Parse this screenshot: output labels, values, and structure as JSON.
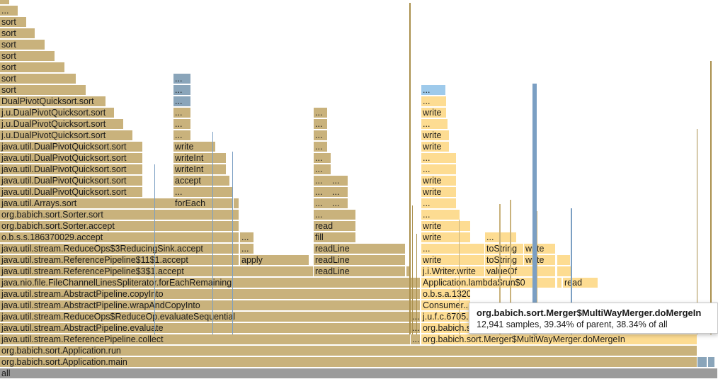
{
  "flamegraph": {
    "rows": [
      {
        "frames": [
          {
            "label": "all",
            "color": "gray"
          }
        ]
      },
      {
        "frames": [
          {
            "label": "org.babich.sort.Application.main",
            "color": "tan"
          },
          {
            "label": "",
            "color": "steel"
          },
          {
            "label": "",
            "color": "steel"
          }
        ]
      },
      {
        "frames": [
          {
            "label": "org.babich.sort.Application.run",
            "color": "tan"
          }
        ]
      },
      {
        "frames": [
          {
            "label": "java.util.stream.ReferencePipeline.collect",
            "color": "tan"
          },
          {
            "label": "...",
            "color": "tan"
          },
          {
            "label": "org.babich.sort.Merger$MultiWayMerger.doMergeIn",
            "color": "yellow"
          }
        ]
      },
      {
        "frames": [
          {
            "label": "java.util.stream.AbstractPipeline.evaluate",
            "color": "tan"
          },
          {
            "label": "...",
            "color": "tan"
          },
          {
            "label": "org.babich.sort.Merger$MultiWayMerger.merge",
            "color": "yellow"
          }
        ]
      },
      {
        "frames": [
          {
            "label": "java.util.stream.ReduceOps$ReduceOp.evaluateSequential",
            "color": "tan"
          },
          {
            "label": "...",
            "color": "tan"
          },
          {
            "label": "j.u.f.c.6705...",
            "color": "yellow"
          }
        ]
      },
      {
        "frames": [
          {
            "label": "java.util.stream.AbstractPipeline.wrapAndCopyInto",
            "color": "tan"
          },
          {
            "label": "",
            "color": "tan"
          },
          {
            "label": "Consumer...",
            "color": "yellow"
          }
        ]
      },
      {
        "frames": [
          {
            "label": "java.util.stream.AbstractPipeline.copyInto",
            "color": "tan"
          },
          {
            "label": "",
            "color": "tan"
          },
          {
            "label": "o.b.s.a.1320...",
            "color": "yellow"
          }
        ]
      },
      {
        "frames": [
          {
            "label": "java.nio.file.FileChannelLinesSpliterator.forEachRemaining",
            "color": "tan"
          },
          {
            "label": "",
            "color": "tan"
          },
          {
            "label": "Application.lambda$run$0",
            "color": "yellow"
          },
          {
            "label": "",
            "color": "yellow"
          },
          {
            "label": "read",
            "color": "yellow"
          }
        ]
      },
      {
        "frames": [
          {
            "label": "java.util.stream.ReferencePipeline$3$1.accept",
            "color": "tan"
          },
          {
            "label": "readLine",
            "color": "tan"
          },
          {
            "label": "",
            "color": "tan"
          },
          {
            "label": "j.i.Writer.write",
            "color": "yellow"
          },
          {
            "label": "valueOf",
            "color": "yellow"
          },
          {
            "label": "",
            "color": "yellow"
          }
        ]
      },
      {
        "frames": [
          {
            "label": "java.util.stream.ReferencePipeline$11$1.accept",
            "color": "tan"
          },
          {
            "label": "apply",
            "color": "tan"
          },
          {
            "label": "readLine",
            "color": "tan"
          },
          {
            "label": "write",
            "color": "yellow"
          },
          {
            "label": "toString",
            "color": "yellow"
          },
          {
            "label": "write",
            "color": "yellow"
          },
          {
            "label": "",
            "color": "yellow"
          }
        ]
      },
      {
        "frames": [
          {
            "label": "java.util.stream.ReduceOps$3ReducingSink.accept",
            "color": "tan"
          },
          {
            "label": "...",
            "color": "tan"
          },
          {
            "label": "readLine",
            "color": "tan"
          },
          {
            "label": "...",
            "color": "yellow"
          },
          {
            "label": "toString",
            "color": "yellow"
          },
          {
            "label": "write",
            "color": "yellow"
          }
        ]
      },
      {
        "frames": [
          {
            "label": "o.b.s.s.186370029.accept",
            "color": "tan"
          },
          {
            "label": "...",
            "color": "tan"
          },
          {
            "label": "fill",
            "color": "tan"
          },
          {
            "label": "write",
            "color": "yellow"
          },
          {
            "label": "...",
            "color": "yellow"
          }
        ]
      },
      {
        "frames": [
          {
            "label": "org.babich.sort.Sorter.accept",
            "color": "tan"
          },
          {
            "label": "read",
            "color": "tan"
          },
          {
            "label": "write",
            "color": "yellow"
          }
        ]
      },
      {
        "frames": [
          {
            "label": "org.babich.sort.Sorter.sort",
            "color": "tan"
          },
          {
            "label": "...",
            "color": "tan"
          },
          {
            "label": "...",
            "color": "yellow"
          }
        ]
      },
      {
        "frames": [
          {
            "label": "java.util.Arrays.sort",
            "color": "tan"
          },
          {
            "label": "forEach",
            "color": "tan"
          },
          {
            "label": "...",
            "color": "tan"
          },
          {
            "label": "...",
            "color": "tan"
          },
          {
            "label": "...",
            "color": "yellow"
          }
        ]
      },
      {
        "frames": [
          {
            "label": "java.util.DualPivotQuicksort.sort",
            "color": "tan"
          },
          {
            "label": "...",
            "color": "tan"
          },
          {
            "label": "...",
            "color": "tan"
          },
          {
            "label": "...",
            "color": "tan"
          },
          {
            "label": "write",
            "color": "yellow"
          }
        ]
      },
      {
        "frames": [
          {
            "label": "java.util.DualPivotQuicksort.sort",
            "color": "tan"
          },
          {
            "label": "accept",
            "color": "tan"
          },
          {
            "label": "...",
            "color": "tan"
          },
          {
            "label": "...",
            "color": "tan"
          },
          {
            "label": "write",
            "color": "yellow"
          }
        ]
      },
      {
        "frames": [
          {
            "label": "java.util.DualPivotQuicksort.sort",
            "color": "tan"
          },
          {
            "label": "writeInt",
            "color": "tan"
          },
          {
            "label": "...",
            "color": "tan"
          },
          {
            "label": "...",
            "color": "yellow"
          }
        ]
      },
      {
        "frames": [
          {
            "label": "java.util.DualPivotQuicksort.sort",
            "color": "tan"
          },
          {
            "label": "writeInt",
            "color": "tan"
          },
          {
            "label": "...",
            "color": "tan"
          },
          {
            "label": "...",
            "color": "yellow"
          }
        ]
      },
      {
        "frames": [
          {
            "label": "java.util.DualPivotQuicksort.sort",
            "color": "tan"
          },
          {
            "label": "write",
            "color": "tan"
          },
          {
            "label": "...",
            "color": "tan"
          },
          {
            "label": "write",
            "color": "yellow"
          }
        ]
      },
      {
        "frames": [
          {
            "label": "j.u.DualPivotQuicksort.sort",
            "color": "tan"
          },
          {
            "label": "...",
            "color": "tan"
          },
          {
            "label": "...",
            "color": "tan"
          },
          {
            "label": "write",
            "color": "yellow"
          }
        ]
      },
      {
        "frames": [
          {
            "label": "j.u.DualPivotQuicksort.sort",
            "color": "tan"
          },
          {
            "label": "...",
            "color": "tan"
          },
          {
            "label": "...",
            "color": "tan"
          },
          {
            "label": "...",
            "color": "yellow"
          }
        ]
      },
      {
        "frames": [
          {
            "label": "j.u.DualPivotQuicksort.sort",
            "color": "tan"
          },
          {
            "label": "...",
            "color": "tan"
          },
          {
            "label": "...",
            "color": "tan"
          },
          {
            "label": "write",
            "color": "yellow"
          }
        ]
      },
      {
        "frames": [
          {
            "label": "DualPivotQuicksort.sort",
            "color": "tan"
          },
          {
            "label": "...",
            "color": "steel"
          },
          {
            "label": "...",
            "color": "yellow"
          }
        ]
      },
      {
        "frames": [
          {
            "label": "sort",
            "color": "tan"
          },
          {
            "label": "...",
            "color": "steel"
          },
          {
            "label": "...",
            "color": "blue"
          }
        ]
      },
      {
        "frames": [
          {
            "label": "sort",
            "color": "tan"
          },
          {
            "label": "...",
            "color": "steel"
          }
        ]
      },
      {
        "frames": [
          {
            "label": "sort",
            "color": "tan"
          }
        ]
      },
      {
        "frames": [
          {
            "label": "sort",
            "color": "tan"
          }
        ]
      },
      {
        "frames": [
          {
            "label": "sort",
            "color": "tan"
          }
        ]
      },
      {
        "frames": [
          {
            "label": "sort",
            "color": "tan"
          }
        ]
      },
      {
        "frames": [
          {
            "label": "sort",
            "color": "tan"
          }
        ]
      },
      {
        "frames": [
          {
            "label": "...",
            "color": "tan"
          }
        ]
      },
      {
        "frames": [
          {
            "label": "",
            "color": "tan"
          }
        ]
      }
    ]
  },
  "tooltip": {
    "title": "org.babich.sort.Merger$MultiWayMerger.doMergeIn",
    "stats": "12,941 samples, 39.34% of parent, 38.34% of all"
  },
  "colors": {
    "tan": "#c9b27c",
    "yellow": "#fddc92",
    "blue": "#9ecaeb",
    "steel": "#8aa5ba",
    "gray": "#9b9b9b"
  }
}
